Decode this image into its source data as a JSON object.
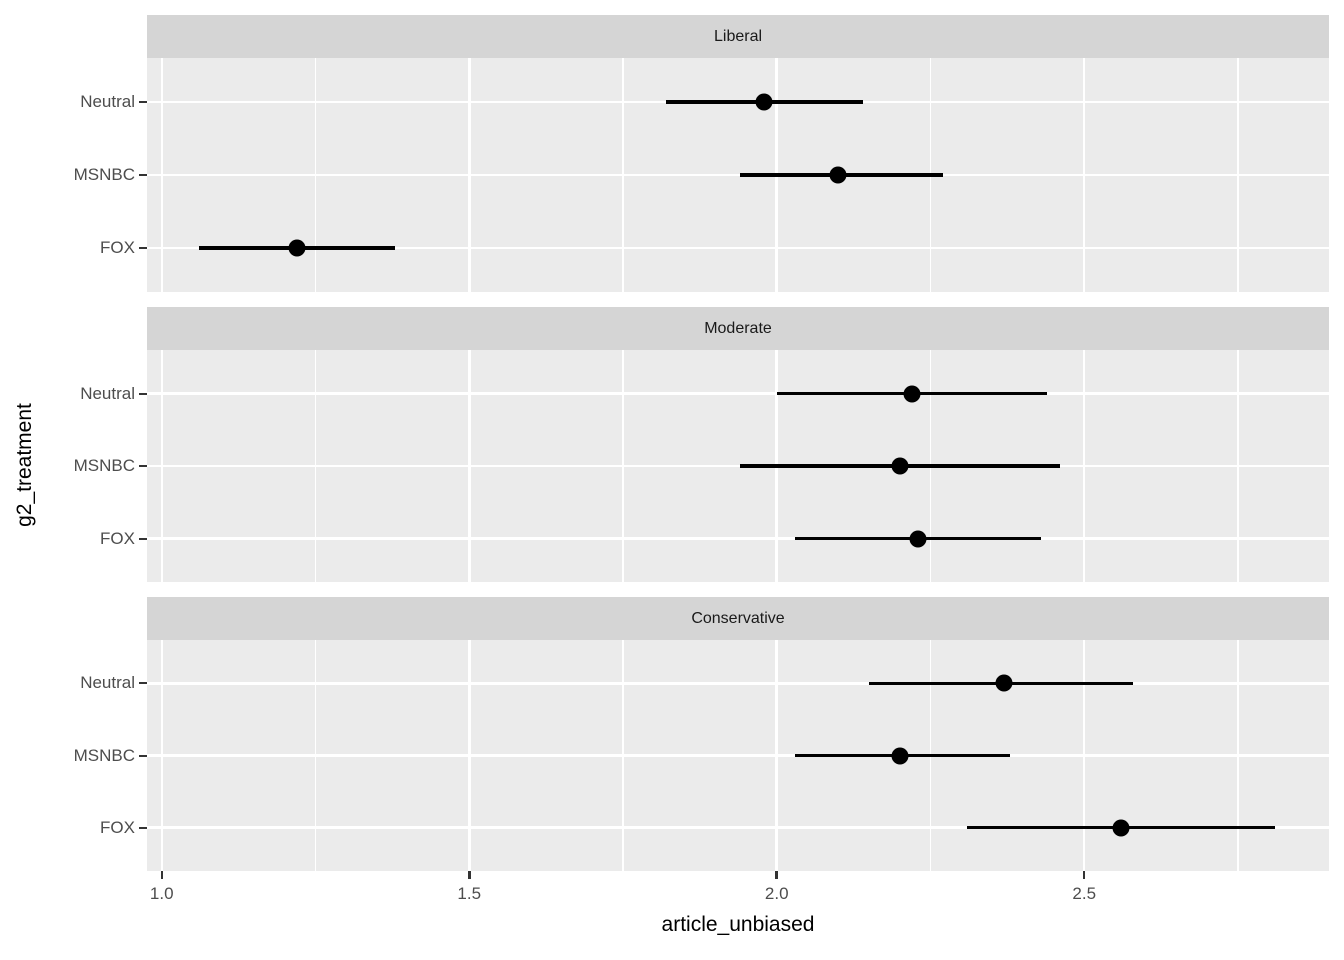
{
  "figure": {
    "x_axis_title": "article_unbiased",
    "y_axis_title": "g2_treatment",
    "colors": {
      "background": "#FFFFFF",
      "panel_bg": "#EBEBEB",
      "strip_bg": "#D5D5D5",
      "gridline": "#FFFFFF",
      "data": "#000000",
      "axis_text": "#4D4D4D",
      "strip_text": "#1A1A1A",
      "tick_mark": "#333333"
    }
  },
  "chart_data": {
    "type": "scatter",
    "subtype": "pointrange-errorbar-faceted",
    "title": "",
    "xlabel": "article_unbiased",
    "ylabel": "g2_treatment",
    "categories": [
      "Neutral",
      "MSNBC",
      "FOX"
    ],
    "x_ticks": [
      1.0,
      1.5,
      2.0,
      2.5
    ],
    "x_tick_labels": [
      "1.0",
      "1.5",
      "2.0",
      "2.5"
    ],
    "x_minor_ticks": [
      1.25,
      1.75,
      2.25,
      2.75
    ],
    "xlim": [
      0.976,
      2.898
    ],
    "grid": "on",
    "legend": "none",
    "facets": [
      {
        "label": "Liberal",
        "rows": [
          {
            "category": "Neutral",
            "estimate": 1.98,
            "lower": 1.82,
            "upper": 2.14
          },
          {
            "category": "MSNBC",
            "estimate": 2.1,
            "lower": 1.94,
            "upper": 2.27
          },
          {
            "category": "FOX",
            "estimate": 1.22,
            "lower": 1.06,
            "upper": 1.38
          }
        ]
      },
      {
        "label": "Moderate",
        "rows": [
          {
            "category": "Neutral",
            "estimate": 2.22,
            "lower": 2.0,
            "upper": 2.44
          },
          {
            "category": "MSNBC",
            "estimate": 2.2,
            "lower": 1.94,
            "upper": 2.46
          },
          {
            "category": "FOX",
            "estimate": 2.23,
            "lower": 2.03,
            "upper": 2.43
          }
        ]
      },
      {
        "label": "Conservative",
        "rows": [
          {
            "category": "Neutral",
            "estimate": 2.37,
            "lower": 2.15,
            "upper": 2.58
          },
          {
            "category": "MSNBC",
            "estimate": 2.2,
            "lower": 2.03,
            "upper": 2.38
          },
          {
            "category": "FOX",
            "estimate": 2.56,
            "lower": 2.31,
            "upper": 2.81
          }
        ]
      }
    ]
  }
}
